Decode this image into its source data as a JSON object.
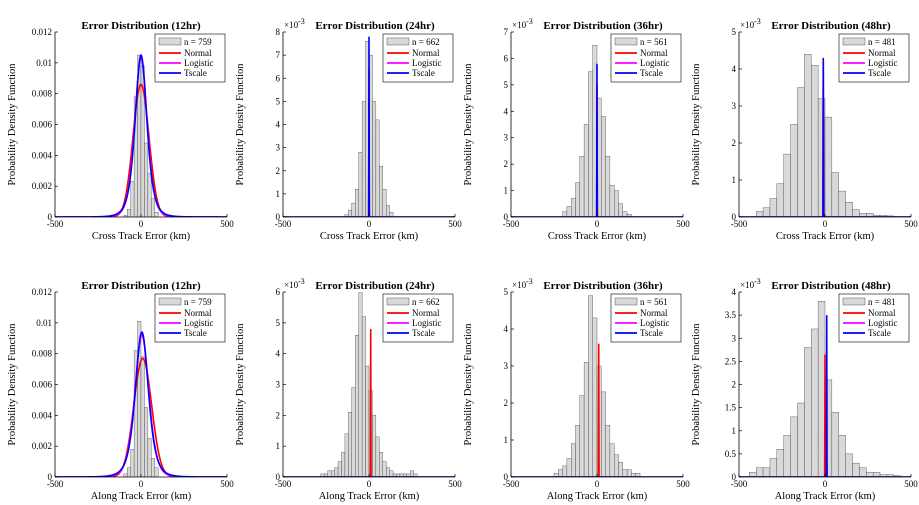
{
  "figure": {
    "legend_labels": [
      "Normal",
      "Logistic",
      "Tscale"
    ],
    "legend_n_prefix": "n = ",
    "colors": {
      "hist": "#d9d9d9",
      "hist_edge": "#333333",
      "Normal": "#ff0000",
      "Logistic": "#ff00ff",
      "Tscale": "#0000ff"
    }
  },
  "chart_data": [
    {
      "type": "histogram+line",
      "title": "Error Distribution (12hr)",
      "xlabel": "Cross Track Error (km)",
      "ylabel": "Probability Density Function",
      "n": "759",
      "xlim": [
        -500,
        500
      ],
      "ylim": [
        0,
        0.012
      ],
      "exponent": "",
      "xticks": [
        "-500",
        "0",
        "500"
      ],
      "yticks": [
        "0",
        "0.002",
        "0.004",
        "0.006",
        "0.008",
        "0.01",
        "0.012"
      ],
      "legend_placement": "top-right",
      "hist": {
        "start": -100,
        "width": 20,
        "heights": [
          0.0001,
          0.0005,
          0.0023,
          0.0078,
          0.0105,
          0.0098,
          0.0048,
          0.0028,
          0.0012,
          0.0003
        ]
      },
      "fits": {
        "Normal": {
          "mu": 0,
          "peak": 0.0086
        },
        "Logistic": {
          "mu": 0,
          "peak": 0.0103
        },
        "Tscale": {
          "mu": 0,
          "peak": 0.0105
        }
      }
    },
    {
      "type": "histogram+line",
      "title": "Error Distribution (24hr)",
      "xlabel": "Cross Track Error (km)",
      "ylabel": "Probability Density Function",
      "n": "662",
      "xlim": [
        -500,
        500
      ],
      "ylim": [
        0,
        8
      ],
      "exponent": "-3",
      "xticks": [
        "-500",
        "0",
        "500"
      ],
      "yticks": [
        "0",
        "1",
        "2",
        "3",
        "4",
        "5",
        "6",
        "7",
        "8"
      ],
      "legend_placement": "top-right",
      "hist": {
        "start": -140,
        "width": 20,
        "heights": [
          0.1,
          0.3,
          0.6,
          1.2,
          2.8,
          5.0,
          7.6,
          7.0,
          5.0,
          4.2,
          2.2,
          1.2,
          0.5,
          0.2
        ]
      },
      "fits": {
        "Normal": {
          "mu": 0,
          "peak": 6.35
        },
        "Logistic": {
          "mu": 0,
          "peak": 7.6
        },
        "Tscale": {
          "mu": 0,
          "peak": 7.8
        }
      }
    },
    {
      "type": "histogram+line",
      "title": "Error Distribution (36hr)",
      "xlabel": "Cross Track Error (km)",
      "ylabel": "Probability Density Function",
      "n": "561",
      "xlim": [
        -500,
        500
      ],
      "ylim": [
        0,
        7
      ],
      "exponent": "-3",
      "xticks": [
        "-500",
        "0",
        "500"
      ],
      "yticks": [
        "0",
        "1",
        "2",
        "3",
        "4",
        "5",
        "6",
        "7"
      ],
      "legend_placement": "top-right",
      "hist": {
        "start": -200,
        "width": 25,
        "heights": [
          0.2,
          0.4,
          0.7,
          1.3,
          2.3,
          3.5,
          5.5,
          6.5,
          4.5,
          3.8,
          2.3,
          1.2,
          1.0,
          0.5,
          0.2,
          0.1
        ]
      },
      "fits": {
        "Normal": {
          "mu": 0,
          "peak": 5.0
        },
        "Logistic": {
          "mu": 0,
          "peak": 5.7
        },
        "Tscale": {
          "mu": 0,
          "peak": 5.8
        }
      }
    },
    {
      "type": "histogram+line",
      "title": "Error Distribution (48hr)",
      "xlabel": "Cross Track Error (km)",
      "ylabel": "Probability Density Function",
      "n": "481",
      "xlim": [
        -500,
        500
      ],
      "ylim": [
        0,
        5
      ],
      "exponent": "-3",
      "xticks": [
        "-500",
        "0",
        "500"
      ],
      "yticks": [
        "0",
        "1",
        "2",
        "3",
        "4",
        "5"
      ],
      "legend_placement": "top-right",
      "hist": {
        "start": -400,
        "width": 40,
        "heights": [
          0.15,
          0.25,
          0.5,
          0.9,
          1.7,
          2.5,
          3.5,
          4.4,
          4.1,
          3.2,
          2.7,
          1.2,
          0.7,
          0.4,
          0.2,
          0.1,
          0.1,
          0.05,
          0.05,
          0.03
        ]
      },
      "fits": {
        "Normal": {
          "mu": -10,
          "peak": 4.2
        },
        "Logistic": {
          "mu": -15,
          "peak": 4.6
        },
        "Tscale": {
          "mu": -10,
          "peak": 4.3
        }
      }
    },
    {
      "type": "histogram+line",
      "title": "Error Distribution (12hr)",
      "xlabel": "Along Track Error (km)",
      "ylabel": "Probability Density Function",
      "n": "759",
      "xlim": [
        -500,
        500
      ],
      "ylim": [
        0,
        0.012
      ],
      "exponent": "",
      "xticks": [
        "-500",
        "0",
        "500"
      ],
      "yticks": [
        "0",
        "0.002",
        "0.004",
        "0.006",
        "0.008",
        "0.01",
        "0.012"
      ],
      "legend_placement": "top-right",
      "hist": {
        "start": -100,
        "width": 20,
        "heights": [
          0.0002,
          0.0006,
          0.0018,
          0.0082,
          0.0101,
          0.0078,
          0.0045,
          0.0025,
          0.0012,
          0.0006
        ]
      },
      "fits": {
        "Normal": {
          "mu": 10,
          "peak": 0.0077
        },
        "Logistic": {
          "mu": 5,
          "peak": 0.0092
        },
        "Tscale": {
          "mu": 5,
          "peak": 0.0094
        }
      }
    },
    {
      "type": "histogram+line",
      "title": "Error Distribution (24hr)",
      "xlabel": "Along Track Error (km)",
      "ylabel": "Probability Density Function",
      "n": "662",
      "xlim": [
        -500,
        500
      ],
      "ylim": [
        0,
        6
      ],
      "exponent": "-3",
      "xticks": [
        "-500",
        "0",
        "500"
      ],
      "yticks": [
        "0",
        "1",
        "2",
        "3",
        "4",
        "5",
        "6"
      ],
      "legend_placement": "top-right",
      "hist": {
        "start": -280,
        "width": 20,
        "heights": [
          0.1,
          0.1,
          0.2,
          0.2,
          0.3,
          0.5,
          0.8,
          1.4,
          2.1,
          2.9,
          4.6,
          6.0,
          5.2,
          3.6,
          2.8,
          2.0,
          1.3,
          0.8,
          0.5,
          0.3,
          0.2,
          0.1,
          0.1,
          0.1,
          0.1,
          0.1,
          0.2,
          0.1
        ]
      },
      "fits": {
        "Normal": {
          "mu": 10,
          "peak": 4.8
        },
        "Logistic": {
          "mu": 5,
          "peak": 5.7
        },
        "Tscale": {
          "mu": 5,
          "peak": 5.9
        }
      }
    },
    {
      "type": "histogram+line",
      "title": "Error Distribution (36hr)",
      "xlabel": "Along Track Error (km)",
      "ylabel": "Probability Density Function",
      "n": "561",
      "xlim": [
        -500,
        500
      ],
      "ylim": [
        0,
        5
      ],
      "exponent": "-3",
      "xticks": [
        "-500",
        "0",
        "500"
      ],
      "yticks": [
        "0",
        "1",
        "2",
        "3",
        "4",
        "5"
      ],
      "legend_placement": "top-right",
      "hist": {
        "start": -250,
        "width": 25,
        "heights": [
          0.1,
          0.2,
          0.3,
          0.5,
          0.9,
          1.4,
          2.2,
          3.1,
          4.9,
          4.3,
          3.0,
          2.3,
          1.4,
          0.9,
          0.6,
          0.4,
          0.2,
          0.2,
          0.1,
          0.1
        ]
      },
      "fits": {
        "Normal": {
          "mu": 10,
          "peak": 3.6
        },
        "Logistic": {
          "mu": 5,
          "peak": 4.3
        },
        "Tscale": {
          "mu": 5,
          "peak": 4.5
        }
      }
    },
    {
      "type": "histogram+line",
      "title": "Error Distribution (48hr)",
      "xlabel": "Along Track Error (km)",
      "ylabel": "Probability Density Function",
      "n": "481",
      "xlim": [
        -500,
        500
      ],
      "ylim": [
        0,
        4
      ],
      "exponent": "-3",
      "xticks": [
        "-500",
        "0",
        "500"
      ],
      "yticks": [
        "0",
        "0.5",
        "1",
        "1.5",
        "2",
        "2.5",
        "3",
        "3.5",
        "4"
      ],
      "legend_placement": "top-right",
      "hist": {
        "start": -440,
        "width": 40,
        "heights": [
          0.1,
          0.2,
          0.2,
          0.4,
          0.6,
          0.9,
          1.3,
          1.6,
          2.8,
          3.2,
          3.8,
          2.1,
          1.4,
          0.9,
          0.5,
          0.3,
          0.2,
          0.1,
          0.1,
          0.05,
          0.05,
          0.03
        ]
      },
      "fits": {
        "Normal": {
          "mu": 0,
          "peak": 2.65
        },
        "Logistic": {
          "mu": 10,
          "peak": 3.2
        },
        "Tscale": {
          "mu": 10,
          "peak": 3.5
        }
      }
    }
  ]
}
